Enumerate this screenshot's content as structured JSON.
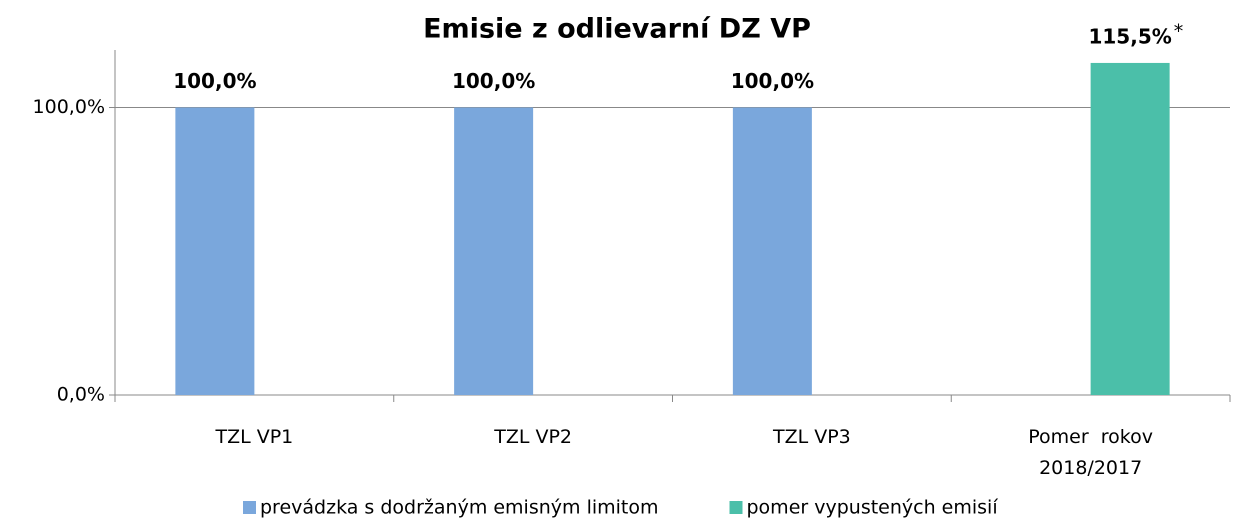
{
  "chart_data": {
    "type": "bar",
    "title": "Emisie z odlievarní DZ VP",
    "categories": [
      "TZL VP1",
      "TZL VP2",
      "TZL VP3",
      "Pomer  rokov\n2018/2017"
    ],
    "series": [
      {
        "name": "prevádzka s dodržaným emisným limitom",
        "color": "#7aa7dc",
        "values": [
          100,
          100,
          100,
          null
        ],
        "value_labels": [
          "100,0%",
          "100,0%",
          "100,0%",
          null
        ]
      },
      {
        "name": "pomer vypustených emisií",
        "color": "#4bbfa9",
        "values": [
          null,
          null,
          null,
          115.5
        ],
        "value_labels": [
          null,
          null,
          null,
          "115,5%"
        ]
      }
    ],
    "annotation": "*",
    "ylim": [
      0,
      120
    ],
    "yticks": [
      {
        "value": 0,
        "label": "0,0%"
      },
      {
        "value": 100,
        "label": "100,0%"
      }
    ],
    "grid": true,
    "legend": "bottom"
  }
}
